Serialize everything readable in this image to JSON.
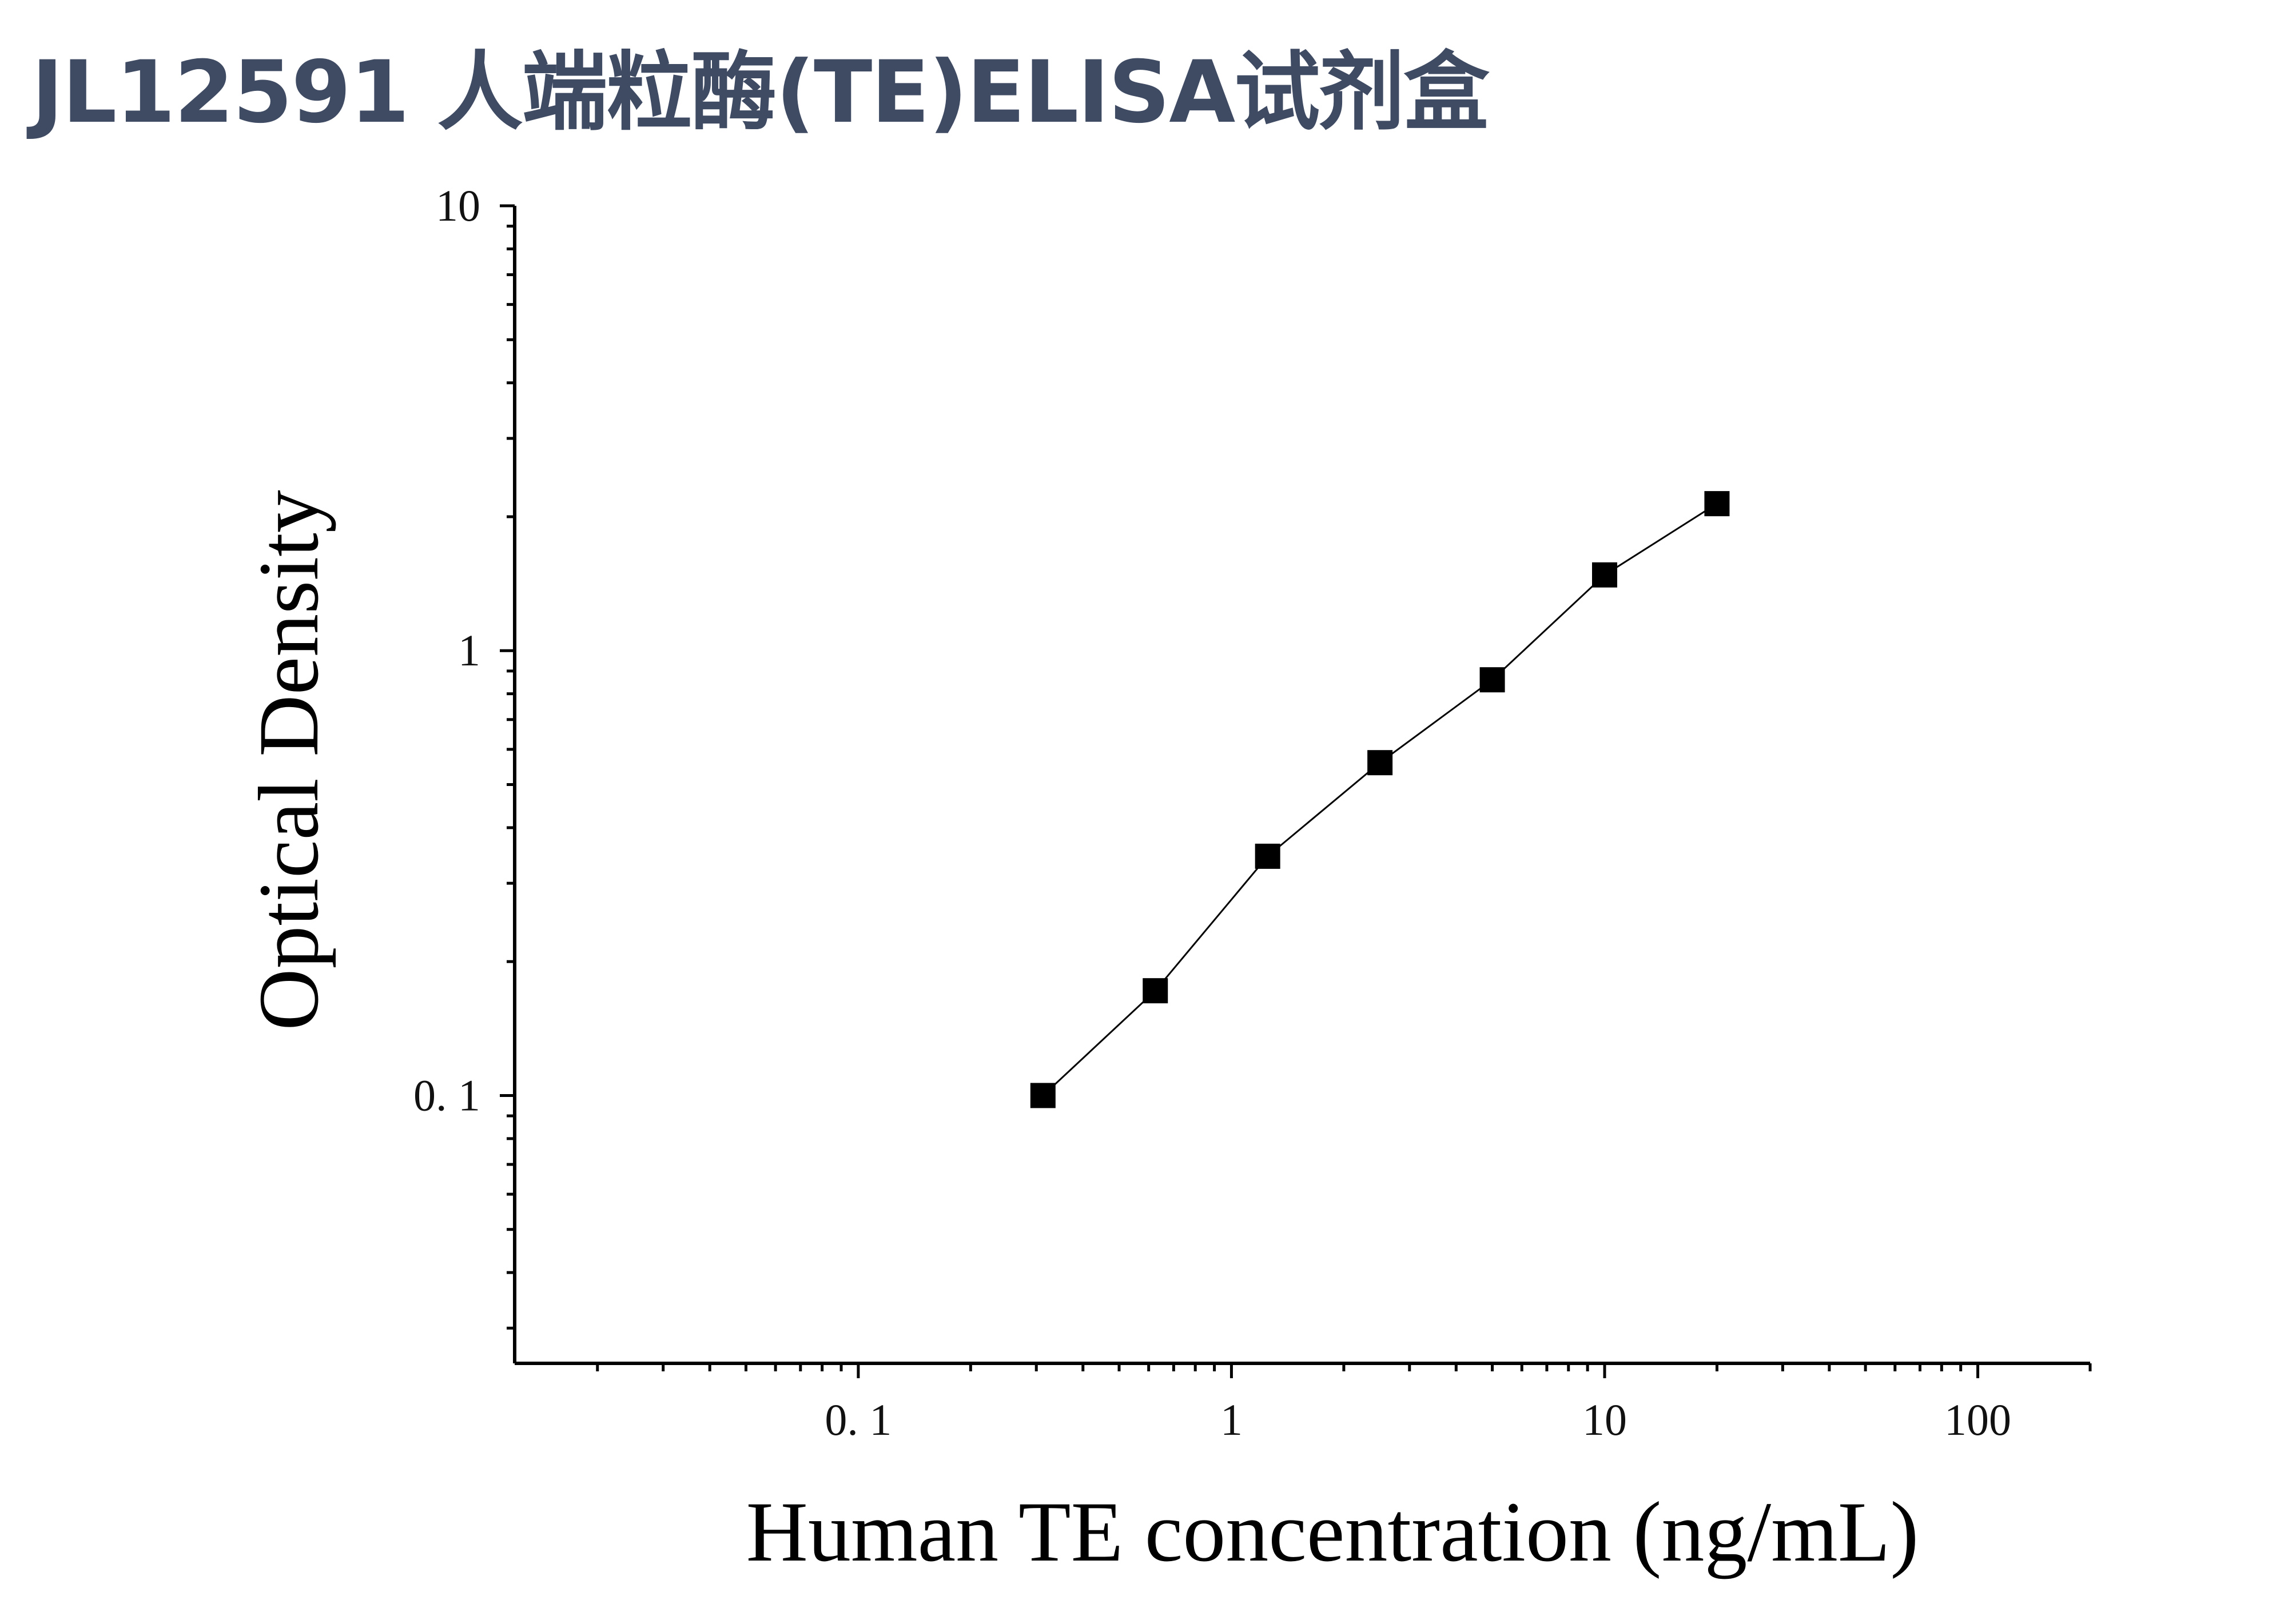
{
  "title": "JL12591 人端粒酶(TE)ELISA试剂盒",
  "chart_data": {
    "type": "scatter",
    "xlabel": "Human TE concentration (ng/mL)",
    "ylabel": "Optical Density",
    "xscale": "log",
    "yscale": "log",
    "xlim": [
      0.012,
      200
    ],
    "ylim": [
      0.025,
      10
    ],
    "x_ticks": [
      0.1,
      1,
      10,
      100
    ],
    "x_tick_labels": [
      "0. 1",
      "1",
      "10",
      "100"
    ],
    "y_ticks": [
      0.1,
      1,
      10
    ],
    "y_tick_labels": [
      "0. 1",
      "1",
      "10"
    ],
    "grid": false,
    "marker": "square",
    "color": "#000000",
    "series": [
      {
        "x": [
          0.3125,
          0.625,
          1.25,
          2.5,
          5,
          10,
          20
        ],
        "y": [
          0.1,
          0.172,
          0.345,
          0.56,
          0.86,
          1.48,
          2.14
        ],
        "fit_line": true
      }
    ]
  }
}
